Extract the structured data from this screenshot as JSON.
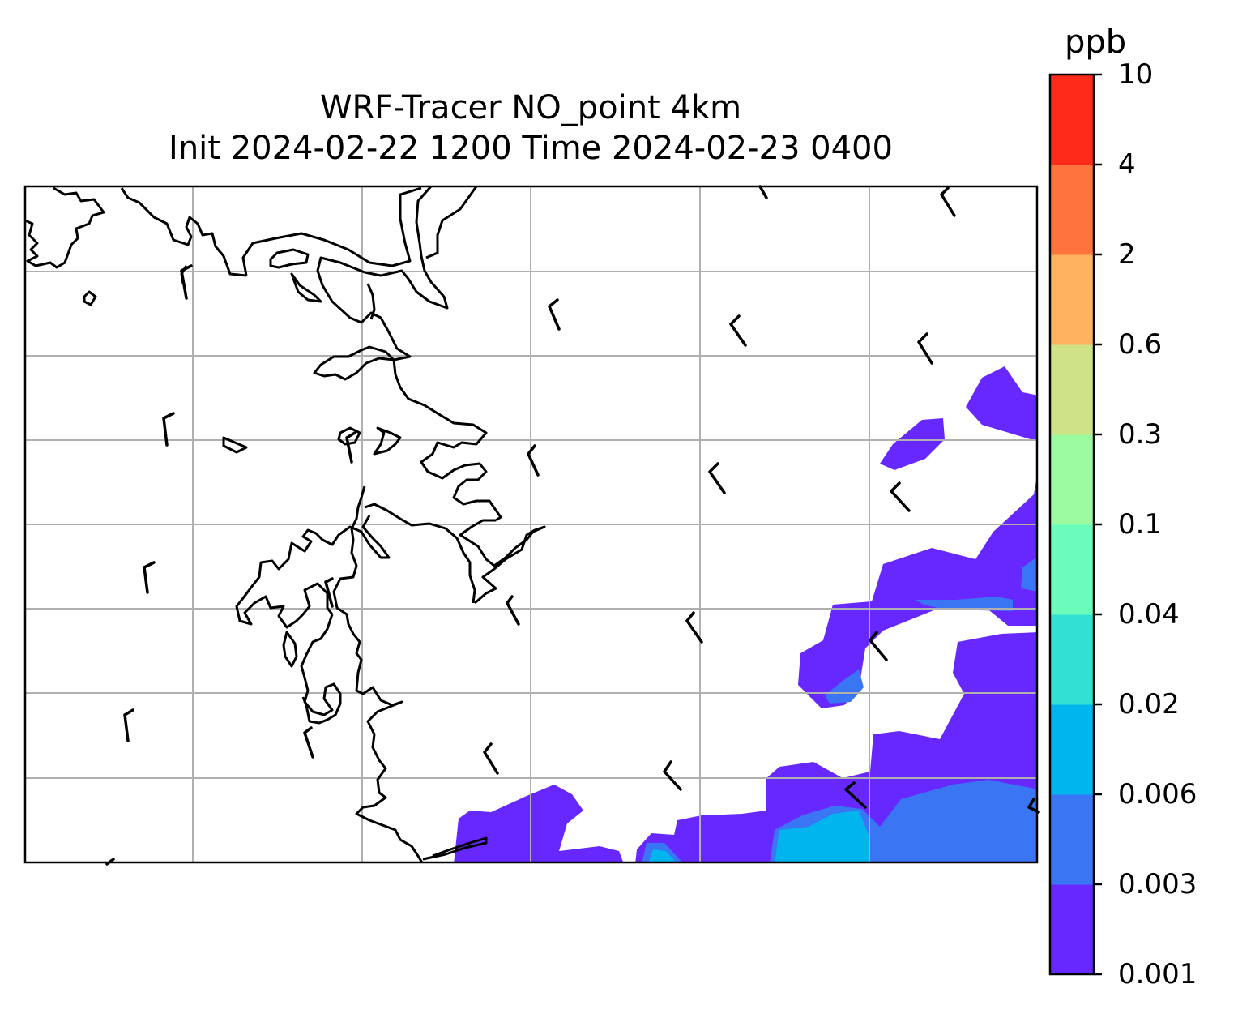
{
  "title": {
    "line1": "WRF-Tracer NO_point 4km",
    "line2": "Init 2024-02-22 1200 Time 2024-02-23 0400"
  },
  "colorbar": {
    "unit": "ppb",
    "levels": [
      "0.001",
      "0.003",
      "0.006",
      "0.02",
      "0.04",
      "0.1",
      "0.3",
      "0.6",
      "2",
      "4",
      "10"
    ],
    "colors": [
      "#6628fe",
      "#3a76f4",
      "#00b5ee",
      "#32e0d4",
      "#6afcba",
      "#9cfba0",
      "#cfe286",
      "#ffb360",
      "#ff733e",
      "#ff2a1a"
    ]
  },
  "map": {
    "coastline_color": "#000000",
    "grid_color": "#b0b0b0",
    "wind_barb_color": "#000000"
  }
}
